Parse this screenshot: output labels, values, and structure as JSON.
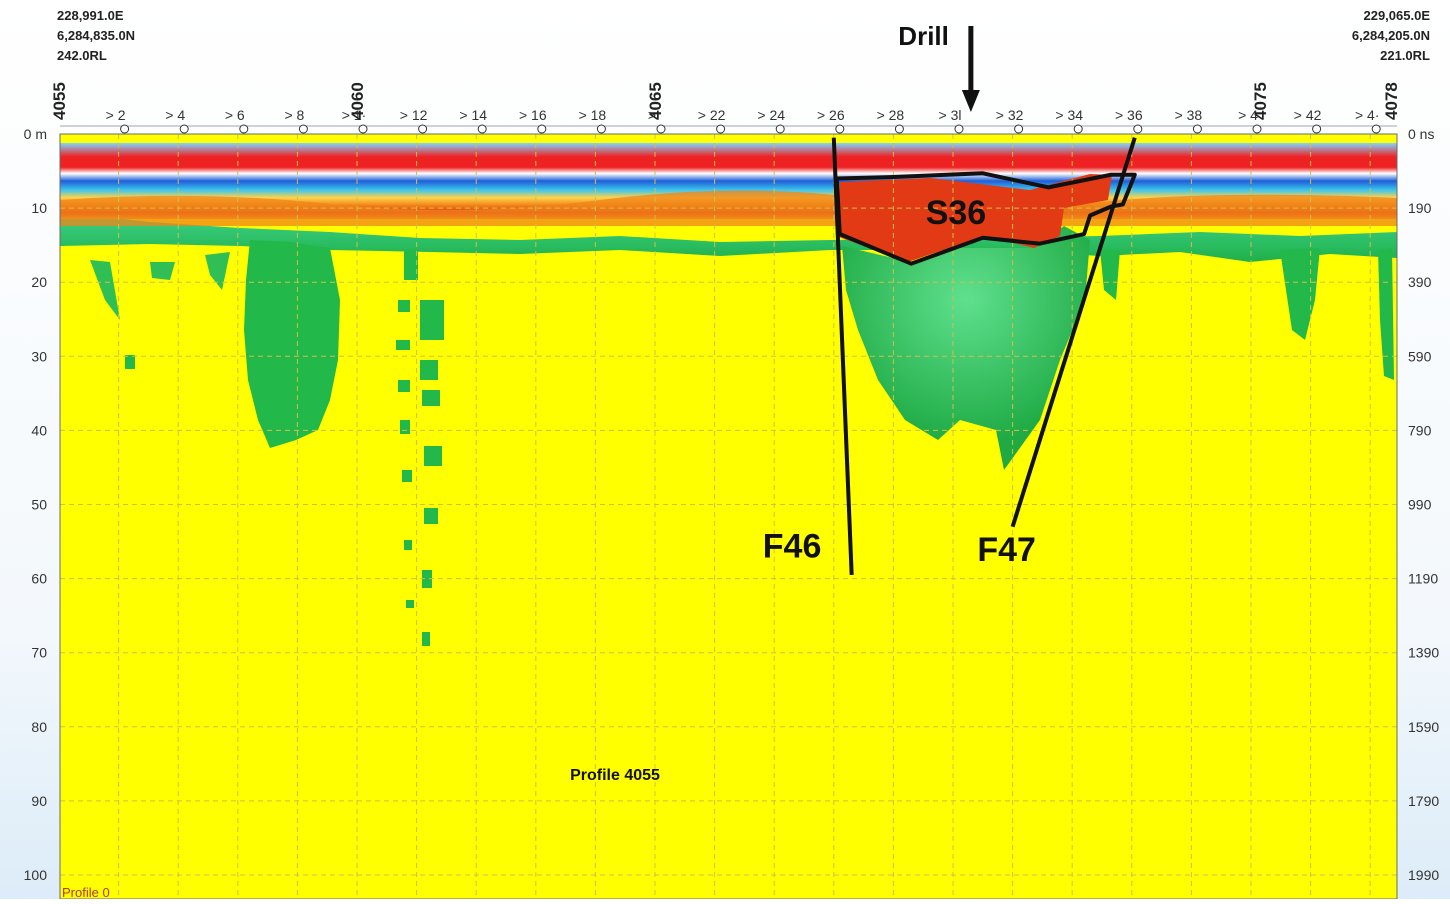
{
  "coords": {
    "left": [
      "228,991.0E",
      "6,284,835.0N",
      "242.0RL"
    ],
    "right": [
      "229,065.0E",
      "6,284,205.0N",
      "221.0RL"
    ]
  },
  "profile_label": "Profile 4055",
  "corner_label": "Profile 0",
  "colors": {
    "background_fill": "#ffff00",
    "grid": "#cfc04a",
    "anomaly_green": "#22b84a",
    "red_band": "#ee2222",
    "blue_band": "#1f5fd8",
    "orange_band": "#f08418",
    "annotation": "#111111",
    "tick_red": "#c0392b"
  },
  "chart_data": {
    "type": "heatmap",
    "title": "",
    "xlabel": "",
    "ylabel_left": "",
    "ylabel_right": "",
    "xlim": [
      0,
      44.8
    ],
    "ylim_depth_m": [
      0,
      100
    ],
    "ylim_time_ns": [
      0,
      1990
    ],
    "y_left_ticks": [
      "0 m",
      "10",
      "20",
      "30",
      "40",
      "50",
      "60",
      "70",
      "80",
      "90",
      "100"
    ],
    "y_right_ticks": [
      "0 ns",
      "190",
      "390",
      "590",
      "790",
      "990",
      "1190",
      "1390",
      "1590",
      "1790",
      "1990"
    ],
    "x_ticks": [
      {
        "x": 2,
        "label": "> 2"
      },
      {
        "x": 4,
        "label": "> 4"
      },
      {
        "x": 6,
        "label": "> 6"
      },
      {
        "x": 8,
        "label": "> 8"
      },
      {
        "x": 10,
        "label": "> 1·"
      },
      {
        "x": 12,
        "label": "> 12"
      },
      {
        "x": 14,
        "label": "> 14"
      },
      {
        "x": 16,
        "label": "> 16"
      },
      {
        "x": 18,
        "label": "> 18"
      },
      {
        "x": 20,
        "label": "> "
      },
      {
        "x": 22,
        "label": "> 22"
      },
      {
        "x": 24,
        "label": "> 24"
      },
      {
        "x": 26,
        "label": "> 26"
      },
      {
        "x": 28,
        "label": "> 28"
      },
      {
        "x": 30,
        "label": "> 3l"
      },
      {
        "x": 32,
        "label": "> 32"
      },
      {
        "x": 34,
        "label": "> 34"
      },
      {
        "x": 36,
        "label": "> 36"
      },
      {
        "x": 38,
        "label": "> 38"
      },
      {
        "x": 40,
        "label": "> 4"
      },
      {
        "x": 42,
        "label": "> 42"
      },
      {
        "x": 44,
        "label": "> 4·"
      }
    ],
    "stations": [
      {
        "x": 0,
        "label": "4055"
      },
      {
        "x": 10,
        "label": "4060"
      },
      {
        "x": 20,
        "label": "4065"
      },
      {
        "x": 40.3,
        "label": "4075"
      },
      {
        "x": 44.8,
        "label": "4078"
      }
    ],
    "annotations": {
      "drill": {
        "label": "Drill",
        "x": 30.6
      },
      "S36": {
        "label": "S36",
        "x": 30.1,
        "depth": 10.5
      },
      "F46": {
        "label": "F46",
        "x": 24.6,
        "depth": 55.5,
        "line": [
          [
            26.0,
            0.5
          ],
          [
            26.6,
            59.5
          ]
        ]
      },
      "F47": {
        "label": "F47",
        "x": 31.8,
        "depth": 56,
        "line": [
          [
            36.1,
            0.5
          ],
          [
            32.0,
            53
          ]
        ]
      },
      "S36_zone": [
        [
          26.1,
          6
        ],
        [
          28.0,
          5.8
        ],
        [
          31.0,
          5.3
        ],
        [
          33.2,
          7.2
        ],
        [
          35.3,
          5.5
        ],
        [
          36.1,
          5.5
        ],
        [
          35.7,
          9.5
        ],
        [
          35.3,
          9.8
        ],
        [
          34.6,
          11
        ],
        [
          34.4,
          13.5
        ],
        [
          32.9,
          14.8
        ],
        [
          31.0,
          14
        ],
        [
          28.6,
          17.5
        ],
        [
          26.2,
          13.5
        ]
      ]
    }
  }
}
